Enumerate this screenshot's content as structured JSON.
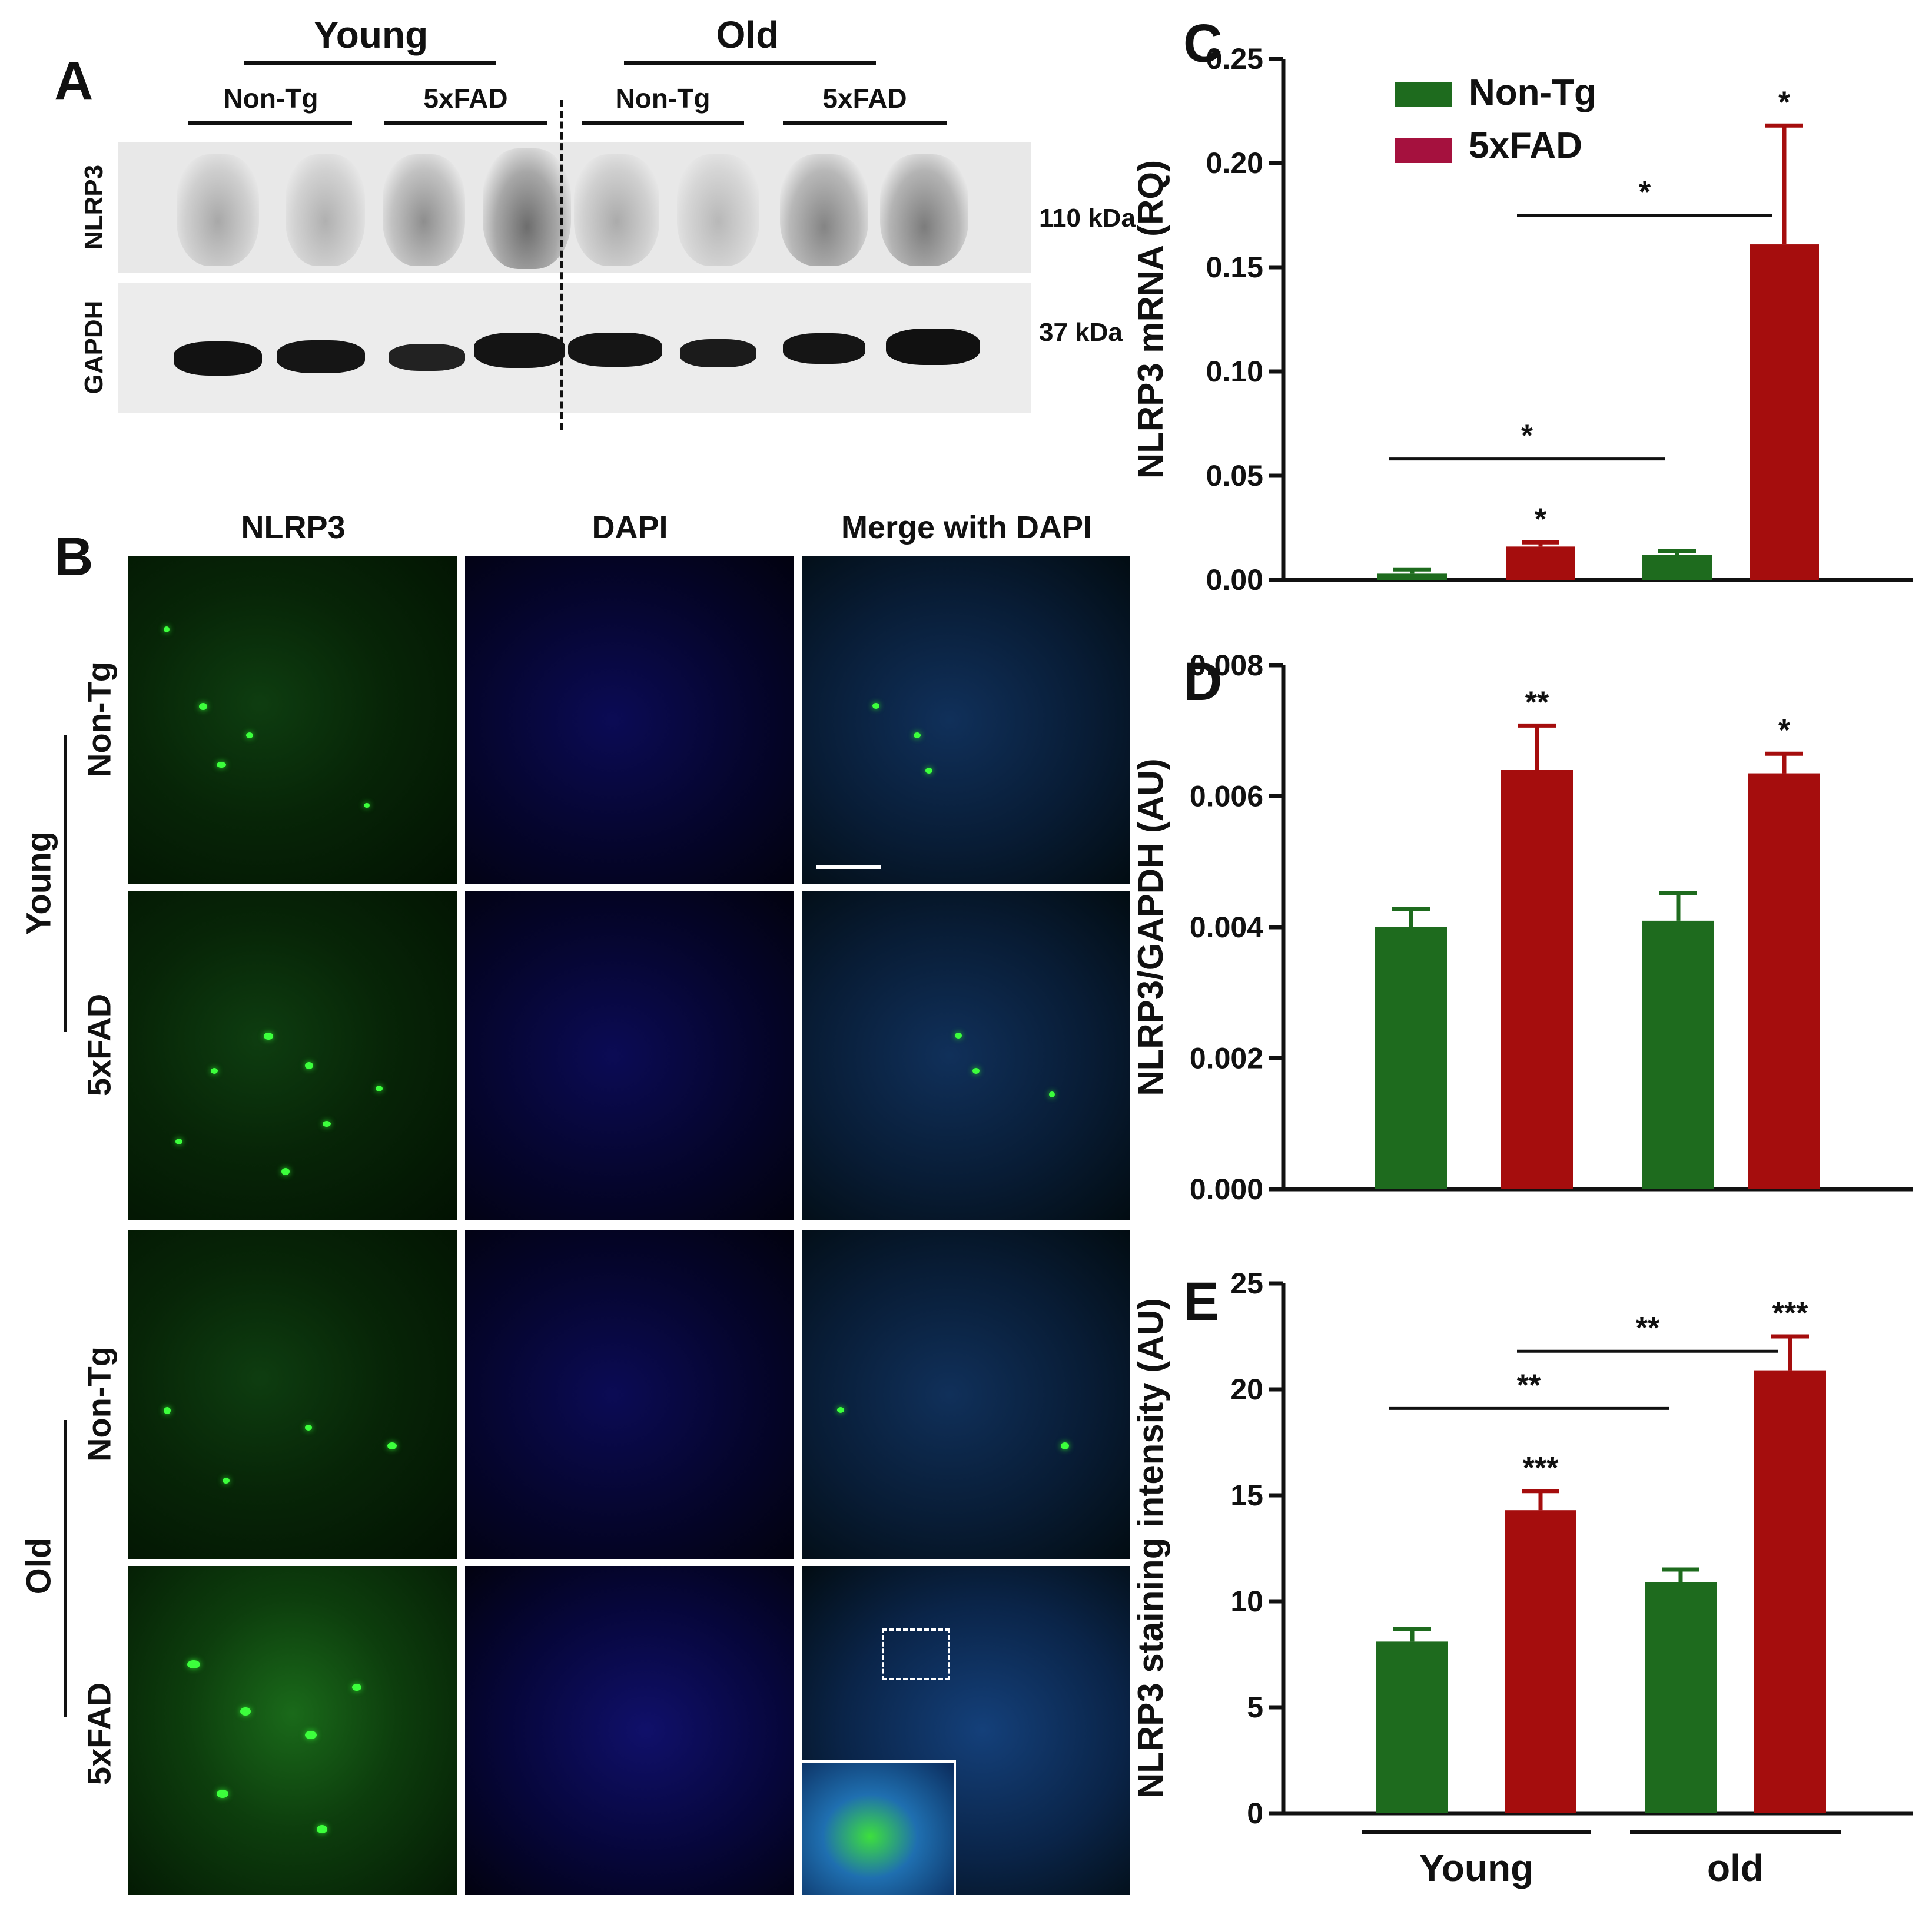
{
  "panels": {
    "A": "A",
    "B": "B",
    "C": "C",
    "D": "D",
    "E": "E"
  },
  "blot": {
    "age_groups": [
      "Young",
      "Old"
    ],
    "genotype_groups": [
      "Non-Tg",
      "5xFAD",
      "Non-Tg",
      "5xFAD"
    ],
    "row_labels": [
      "NLRP3",
      "GAPDH"
    ],
    "mw_labels": [
      "110 kDa",
      "37 kDa"
    ]
  },
  "micrographs": {
    "column_headers": [
      "NLRP3",
      "DAPI",
      "Merge with DAPI"
    ],
    "age_labels": [
      "Young",
      "Old"
    ],
    "row_genotypes": [
      "Non-Tg",
      "5xFAD",
      "Non-Tg",
      "5xFAD"
    ]
  },
  "legend": {
    "items": [
      "Non-Tg",
      "5xFAD"
    ]
  },
  "colors": {
    "non_tg": "#1e6b1e",
    "fad": "#a50d0d",
    "legend_fad": "#a5113e"
  },
  "chart_data": [
    {
      "id": "C",
      "type": "bar",
      "ylabel": "NLRP3 mRNA (RQ)",
      "ylim": [
        0,
        0.25
      ],
      "yticks": [
        "0.00",
        "0.05",
        "0.10",
        "0.15",
        "0.20",
        "0.25"
      ],
      "categories": [
        "Young Non-Tg",
        "Young 5xFAD",
        "Old Non-Tg",
        "Old 5xFAD"
      ],
      "values": [
        0.003,
        0.016,
        0.012,
        0.161
      ],
      "errors": [
        0.002,
        0.002,
        0.002,
        0.057
      ],
      "bar_annotations": [
        "",
        "*",
        "",
        "*"
      ],
      "comparisons": [
        {
          "from": 0,
          "to": 2,
          "label": "*",
          "y": 0.058
        },
        {
          "from": 1,
          "to": 3,
          "label": "*",
          "y": 0.175
        }
      ]
    },
    {
      "id": "D",
      "type": "bar",
      "ylabel": "NLRP3/GAPDH (AU)",
      "ylim": [
        0,
        0.008
      ],
      "yticks": [
        "0.000",
        "0.002",
        "0.004",
        "0.006",
        "0.008"
      ],
      "categories": [
        "Young Non-Tg",
        "Young 5xFAD",
        "Old Non-Tg",
        "Old 5xFAD"
      ],
      "values": [
        0.004,
        0.0064,
        0.0041,
        0.00635
      ],
      "errors": [
        0.00028,
        0.00068,
        0.00042,
        0.0003
      ],
      "bar_annotations": [
        "",
        "**",
        "",
        "*"
      ],
      "comparisons": []
    },
    {
      "id": "E",
      "type": "bar",
      "ylabel": "NLRP3 staining intensity (AU)",
      "ylim": [
        0,
        25
      ],
      "yticks": [
        "0",
        "5",
        "10",
        "15",
        "20",
        "25"
      ],
      "categories": [
        "Young Non-Tg",
        "Young 5xFAD",
        "Old Non-Tg",
        "Old 5xFAD"
      ],
      "values": [
        8.1,
        14.3,
        10.9,
        20.9
      ],
      "errors": [
        0.6,
        0.9,
        0.6,
        1.6
      ],
      "bar_annotations": [
        "",
        "***",
        "",
        "***"
      ],
      "comparisons": [
        {
          "from": 0,
          "to": 2,
          "label": "**",
          "y": 19.1
        },
        {
          "from": 1,
          "to": 3,
          "label": "**",
          "y": 21.8
        }
      ],
      "group_labels": [
        "Young",
        "old"
      ]
    }
  ]
}
